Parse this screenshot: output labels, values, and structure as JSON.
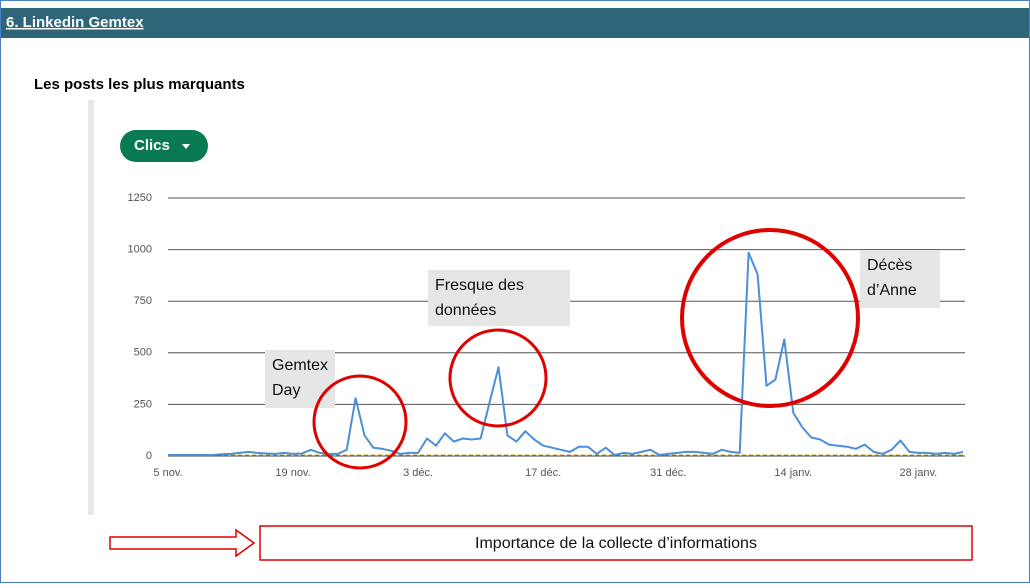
{
  "header": {
    "title": "6. Linkedin Gemtex"
  },
  "subtitle": "Les posts les plus marquants",
  "footer": {
    "text": "Importance de la collecte d’informations"
  },
  "chart_data": {
    "type": "line",
    "dropdown": "Clics",
    "categories": [
      "5 nov.",
      null,
      null,
      null,
      null,
      null,
      null,
      null,
      null,
      null,
      null,
      null,
      null,
      null,
      "19 nov.",
      null,
      null,
      null,
      null,
      null,
      null,
      null,
      null,
      null,
      null,
      null,
      null,
      null,
      "3 déc.",
      null,
      null,
      null,
      null,
      null,
      null,
      null,
      null,
      null,
      null,
      null,
      null,
      null,
      "17 déc.",
      null,
      null,
      null,
      null,
      null,
      null,
      null,
      null,
      null,
      null,
      null,
      null,
      null,
      "31 déc.",
      null,
      null,
      null,
      null,
      null,
      null,
      null,
      null,
      null,
      null,
      null,
      null,
      null,
      "14 janv.",
      null,
      null,
      null,
      null,
      null,
      null,
      null,
      null,
      null,
      null,
      null,
      null,
      null,
      "28 janv.",
      null,
      null,
      null,
      null,
      null
    ],
    "series": [
      {
        "color": "#4a90d9",
        "values": [
          5,
          5,
          5,
          5,
          5,
          5,
          8,
          10,
          15,
          20,
          15,
          12,
          10,
          15,
          10,
          12,
          30,
          15,
          10,
          10,
          30,
          280,
          100,
          40,
          35,
          25,
          10,
          15,
          15,
          85,
          50,
          110,
          70,
          85,
          80,
          85,
          260,
          430,
          100,
          70,
          120,
          80,
          50,
          40,
          30,
          20,
          45,
          45,
          10,
          40,
          5,
          15,
          10,
          20,
          30,
          5,
          10,
          15,
          20,
          20,
          15,
          10,
          30,
          20,
          15,
          985,
          880,
          340,
          370,
          565,
          210,
          140,
          90,
          80,
          55,
          50,
          45,
          35,
          55,
          20,
          10,
          30,
          75,
          20,
          15,
          15,
          10,
          15,
          10,
          20
        ]
      }
    ],
    "ylim": [
      0,
      1250
    ],
    "yticks": [
      0,
      250,
      500,
      750,
      1000,
      1250
    ],
    "grid": true,
    "annotations": [
      [
        "Gemtex",
        "Day"
      ],
      [
        "Fresque des",
        "données"
      ],
      [
        "Décès",
        "d’Anne"
      ]
    ]
  }
}
